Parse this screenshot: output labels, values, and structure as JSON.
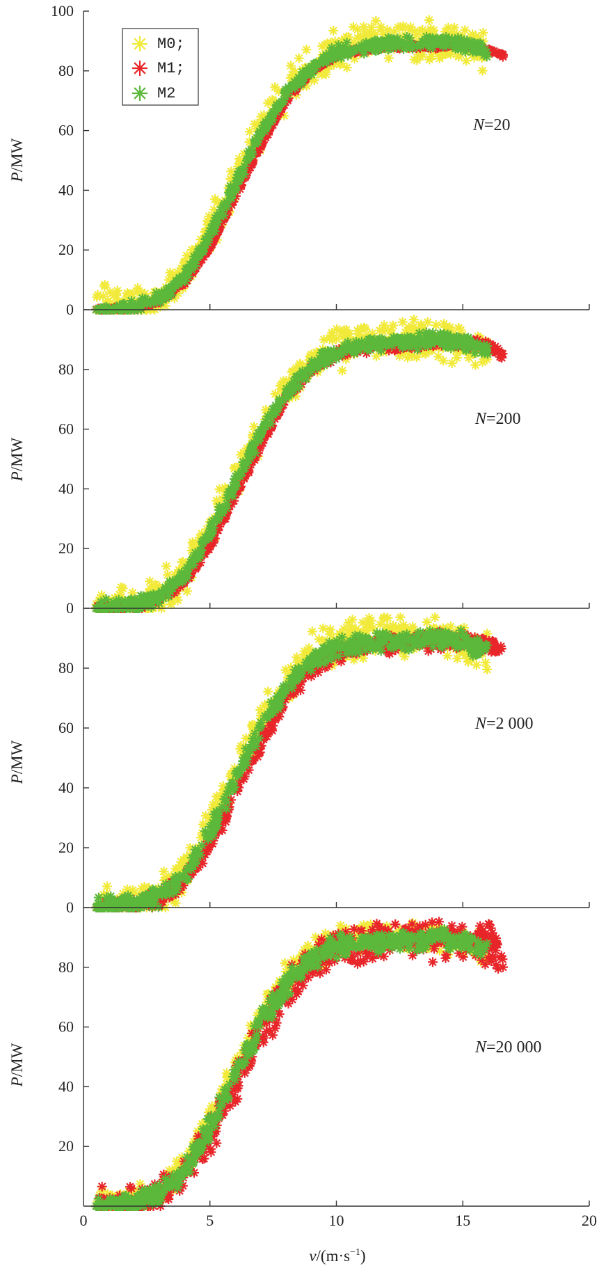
{
  "colors": {
    "M0": "#f2ea3a",
    "M1": "#e8262a",
    "M2": "#5cb83a",
    "axis": "#333333"
  },
  "legend": {
    "position": "top-left",
    "entries": [
      "M0;",
      "M1;",
      "M2"
    ]
  },
  "x_axis": {
    "label_var": "v",
    "label_unit": "/(m·s",
    "label_exp": "−1",
    "label_close": ")"
  },
  "y_axis": {
    "label_var": "P",
    "label_unit": "/MW"
  },
  "chart_data": [
    {
      "type": "scatter",
      "panel": 1,
      "annotation": {
        "var": "N",
        "value": "=20"
      },
      "xlim": [
        0,
        20
      ],
      "ylim": [
        0,
        100
      ],
      "xticks": [],
      "yticks": [
        0,
        20,
        40,
        60,
        80,
        100
      ],
      "show_x_tick_labels": false,
      "series": [
        {
          "name": "M0;",
          "x": [
            0.5,
            1,
            2,
            3,
            4,
            5,
            6,
            7,
            8,
            9,
            10,
            11,
            12,
            13,
            14,
            15,
            16
          ],
          "y": [
            0,
            0,
            1,
            4,
            12,
            26,
            43,
            60,
            73,
            82,
            87,
            90,
            90,
            90,
            90,
            89,
            85
          ],
          "spread": 9
        },
        {
          "name": "M1;",
          "x": [
            0.5,
            1,
            2,
            3,
            4,
            5,
            6,
            7,
            8,
            9,
            10,
            11,
            12,
            13,
            14,
            15,
            16,
            16.6
          ],
          "y": [
            0,
            0,
            0.5,
            3,
            9,
            21,
            38,
            55,
            70,
            80,
            85,
            87,
            88,
            88,
            88,
            89,
            87,
            85
          ],
          "spread": 1
        },
        {
          "name": "M2",
          "x": [
            0.5,
            1,
            2,
            3,
            4,
            5,
            6,
            7,
            8,
            9,
            10,
            11,
            12,
            13,
            14,
            15,
            16
          ],
          "y": [
            0,
            0,
            1,
            4,
            11,
            25,
            42,
            59,
            72,
            81,
            86,
            88,
            89,
            89,
            90,
            89,
            86
          ],
          "spread": 3
        }
      ]
    },
    {
      "type": "scatter",
      "panel": 2,
      "annotation": {
        "var": "N",
        "value": "=200"
      },
      "xlim": [
        0,
        20
      ],
      "ylim": [
        0,
        100
      ],
      "xticks": [],
      "yticks": [
        0,
        20,
        40,
        60,
        80
      ],
      "show_x_tick_labels": false,
      "series": [
        {
          "name": "M0;",
          "x": [
            0.5,
            1,
            2,
            3,
            4,
            5,
            6,
            7,
            8,
            9,
            10,
            11,
            12,
            13,
            14,
            15,
            16
          ],
          "y": [
            0,
            0,
            1,
            4,
            12,
            26,
            43,
            60,
            73,
            82,
            87,
            90,
            90,
            90,
            90,
            89,
            85
          ],
          "spread": 9
        },
        {
          "name": "M1;",
          "x": [
            0.5,
            1,
            2,
            3,
            4,
            5,
            6,
            7,
            8,
            9,
            10,
            11,
            12,
            13,
            14,
            15,
            16,
            16.6
          ],
          "y": [
            0,
            0,
            0.5,
            3,
            9,
            21,
            38,
            55,
            70,
            80,
            85,
            87,
            88,
            88,
            89,
            89,
            88,
            85
          ],
          "spread": 2
        },
        {
          "name": "M2",
          "x": [
            0.5,
            1,
            2,
            3,
            4,
            5,
            6,
            7,
            8,
            9,
            10,
            11,
            12,
            13,
            14,
            15,
            16
          ],
          "y": [
            0,
            0,
            1,
            4,
            11,
            25,
            42,
            59,
            72,
            81,
            86,
            88,
            89,
            89,
            90,
            89,
            86
          ],
          "spread": 3.5
        }
      ]
    },
    {
      "type": "scatter",
      "panel": 3,
      "annotation": {
        "var": "N",
        "value": "=2 000"
      },
      "xlim": [
        0,
        20
      ],
      "ylim": [
        0,
        100
      ],
      "xticks": [],
      "yticks": [
        0,
        20,
        40,
        60,
        80
      ],
      "show_x_tick_labels": false,
      "series": [
        {
          "name": "M0;",
          "x": [
            0.5,
            1,
            2,
            3,
            4,
            5,
            6,
            7,
            8,
            9,
            10,
            11,
            12,
            13,
            14,
            15,
            16
          ],
          "y": [
            0,
            0,
            1,
            4,
            12,
            27,
            45,
            62,
            75,
            84,
            88,
            90,
            90,
            90,
            90,
            89,
            85
          ],
          "spread": 9
        },
        {
          "name": "M1;",
          "x": [
            0.5,
            1,
            2,
            3,
            4,
            5,
            6,
            7,
            8,
            9,
            10,
            11,
            12,
            13,
            14,
            15,
            16,
            16.6
          ],
          "y": [
            0,
            0,
            0.5,
            3,
            9,
            21,
            38,
            55,
            70,
            80,
            85,
            87,
            88,
            89,
            89,
            89,
            88,
            85
          ],
          "spread": 4
        },
        {
          "name": "M2",
          "x": [
            0.5,
            1,
            2,
            3,
            4,
            5,
            6,
            7,
            8,
            9,
            10,
            11,
            12,
            13,
            14,
            15,
            16
          ],
          "y": [
            0,
            0,
            1,
            4,
            11,
            25,
            43,
            60,
            73,
            82,
            87,
            88,
            89,
            89,
            90,
            89,
            86
          ],
          "spread": 4.5
        }
      ]
    },
    {
      "type": "scatter",
      "panel": 4,
      "annotation": {
        "var": "N",
        "value": "=20 000"
      },
      "xlim": [
        0,
        20
      ],
      "ylim": [
        0,
        100
      ],
      "xticks": [
        0,
        5,
        10,
        15,
        20
      ],
      "yticks": [
        20,
        40,
        60,
        80
      ],
      "show_x_tick_labels": true,
      "series": [
        {
          "name": "M0;",
          "x": [
            0.5,
            1,
            2,
            3,
            4,
            5,
            6,
            7,
            8,
            9,
            10,
            11,
            12,
            13,
            14,
            15,
            16
          ],
          "y": [
            0,
            0,
            1,
            5,
            13,
            28,
            46,
            63,
            76,
            84,
            88,
            90,
            90,
            90,
            90,
            89,
            85
          ],
          "spread": 7
        },
        {
          "name": "M1;",
          "x": [
            0.5,
            1,
            2,
            3,
            4,
            5,
            6,
            7,
            8,
            9,
            10,
            11,
            12,
            13,
            14,
            15,
            16,
            16.6
          ],
          "y": [
            0,
            0,
            0.5,
            4,
            11,
            24,
            41,
            58,
            72,
            82,
            86,
            88,
            89,
            89,
            89,
            89,
            88,
            85
          ],
          "spread": 9
        },
        {
          "name": "M2",
          "x": [
            0.5,
            1,
            2,
            3,
            4,
            5,
            6,
            7,
            8,
            9,
            10,
            11,
            12,
            13,
            14,
            15,
            16
          ],
          "y": [
            0,
            0,
            1,
            4,
            12,
            26,
            44,
            61,
            74,
            83,
            87,
            88,
            89,
            89,
            90,
            89,
            86
          ],
          "spread": 5
        }
      ]
    }
  ]
}
